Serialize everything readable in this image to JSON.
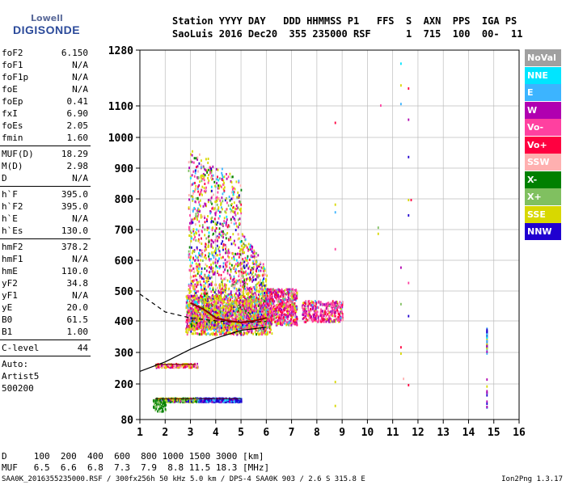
{
  "logo": {
    "line1": "Lowell",
    "line2": "DIGISONDE"
  },
  "header": {
    "line1": "Station YYYY DAY   DDD HHMMSS P1   FFS  S  AXN  PPS  IGA PS",
    "line2": "SaoLuis 2016 Dec20  355 235000 RSF      1  715  100  00-  11"
  },
  "params": {
    "group1": [
      {
        "label": "foF2",
        "value": "6.150"
      },
      {
        "label": "foF1",
        "value": "N/A"
      },
      {
        "label": "foF1p",
        "value": "N/A"
      },
      {
        "label": "foE",
        "value": "N/A"
      },
      {
        "label": "foEp",
        "value": "0.41"
      },
      {
        "label": "fxI",
        "value": "6.90"
      },
      {
        "label": "foEs",
        "value": "2.05"
      },
      {
        "label": "fmin",
        "value": "1.60"
      }
    ],
    "group2": [
      {
        "label": "MUF(D)",
        "value": "18.29"
      },
      {
        "label": "M(D)",
        "value": "2.98"
      },
      {
        "label": "D",
        "value": "N/A"
      }
    ],
    "group3": [
      {
        "label": "h`F",
        "value": "395.0"
      },
      {
        "label": "h`F2",
        "value": "395.0"
      },
      {
        "label": "h`E",
        "value": "N/A"
      },
      {
        "label": "h`Es",
        "value": "130.0"
      }
    ],
    "group4": [
      {
        "label": "hmF2",
        "value": "378.2"
      },
      {
        "label": "hmF1",
        "value": "N/A"
      },
      {
        "label": "hmE",
        "value": "110.0"
      },
      {
        "label": "yF2",
        "value": "34.8"
      },
      {
        "label": "yF1",
        "value": "N/A"
      },
      {
        "label": "yE",
        "value": "20.0"
      },
      {
        "label": "B0",
        "value": "61.5"
      },
      {
        "label": "B1",
        "value": "1.00"
      }
    ],
    "group5": [
      {
        "label": "C-level",
        "value": "44"
      }
    ],
    "auto": [
      "Auto:",
      "Artist5",
      "500200"
    ]
  },
  "legend": [
    {
      "label": "NoVal",
      "color": "#a0a0a0"
    },
    {
      "label": "NNE",
      "color": "#00e5ff"
    },
    {
      "label": "E",
      "color": "#3cb4ff"
    },
    {
      "label": "W",
      "color": "#b000b0"
    },
    {
      "label": "Vo-",
      "color": "#ff40a0"
    },
    {
      "label": "Vo+",
      "color": "#ff0040"
    },
    {
      "label": "SSW",
      "color": "#ffb0b0"
    },
    {
      "label": "X-",
      "color": "#008000"
    },
    {
      "label": "X+",
      "color": "#80c060"
    },
    {
      "label": "SSE",
      "color": "#d8d800"
    },
    {
      "label": "NNW",
      "color": "#2000d0"
    }
  ],
  "dmuf": {
    "line1": "D     100  200  400  600  800 1000 1500 3000 [km]",
    "line2": "MUF   6.5  6.6  6.8  7.3  7.9  8.8 11.5 18.3 [MHz]"
  },
  "footer": {
    "line": "SAA0K_2016355235000.RSF / 300fx256h 50 kHz 5.0 km / DPS-4 SAA0K 903 / 2.6 S 315.8 E",
    "version": "Ion2Png 1.3.17"
  },
  "chart_data": {
    "type": "scatter",
    "xlabel": "",
    "ylabel": "",
    "xlim": [
      1,
      16
    ],
    "ylim": [
      80,
      1280
    ],
    "y_scale": "nonlinear",
    "x_ticks": [
      "1",
      "2",
      "3",
      "4",
      "5",
      "6",
      "7",
      "8",
      "9",
      "10",
      "11",
      "12",
      "13",
      "14",
      "15",
      "16"
    ],
    "y_ticks": [
      "80",
      "200",
      "300",
      "400",
      "500",
      "600",
      "700",
      "800",
      "900",
      "1000",
      "1100",
      "1280"
    ],
    "grid": true,
    "traces": [
      {
        "name": "",
        "description": "Es trace",
        "x": [
          1.6,
          3.2
        ],
        "y": [
          150,
          150
        ]
      },
      {
        "name": "",
        "description": "E layer trace",
        "x": [
          1.6,
          3.2
        ],
        "y": [
          262,
          262
        ]
      },
      {
        "name": "",
        "description": "X Es",
        "x": [
          3.3,
          5.0
        ],
        "y": [
          150,
          150
        ]
      },
      {
        "name": "",
        "description": "F2 o-trace",
        "x": [
          3.0,
          3.5,
          4.0,
          4.5,
          5.0,
          5.5,
          6.0
        ],
        "y": [
          460,
          440,
          410,
          400,
          395,
          400,
          410
        ]
      }
    ],
    "profile_curve": {
      "x": [
        1.0,
        2.0,
        3.0,
        4.0,
        5.0,
        6.0
      ],
      "y": [
        240,
        270,
        310,
        345,
        370,
        380
      ]
    },
    "dashed_curve": {
      "x": [
        1.0,
        2.0,
        3.0,
        4.0,
        5.0,
        6.0
      ],
      "y": [
        490,
        430,
        410,
        400,
        395,
        398
      ]
    }
  }
}
